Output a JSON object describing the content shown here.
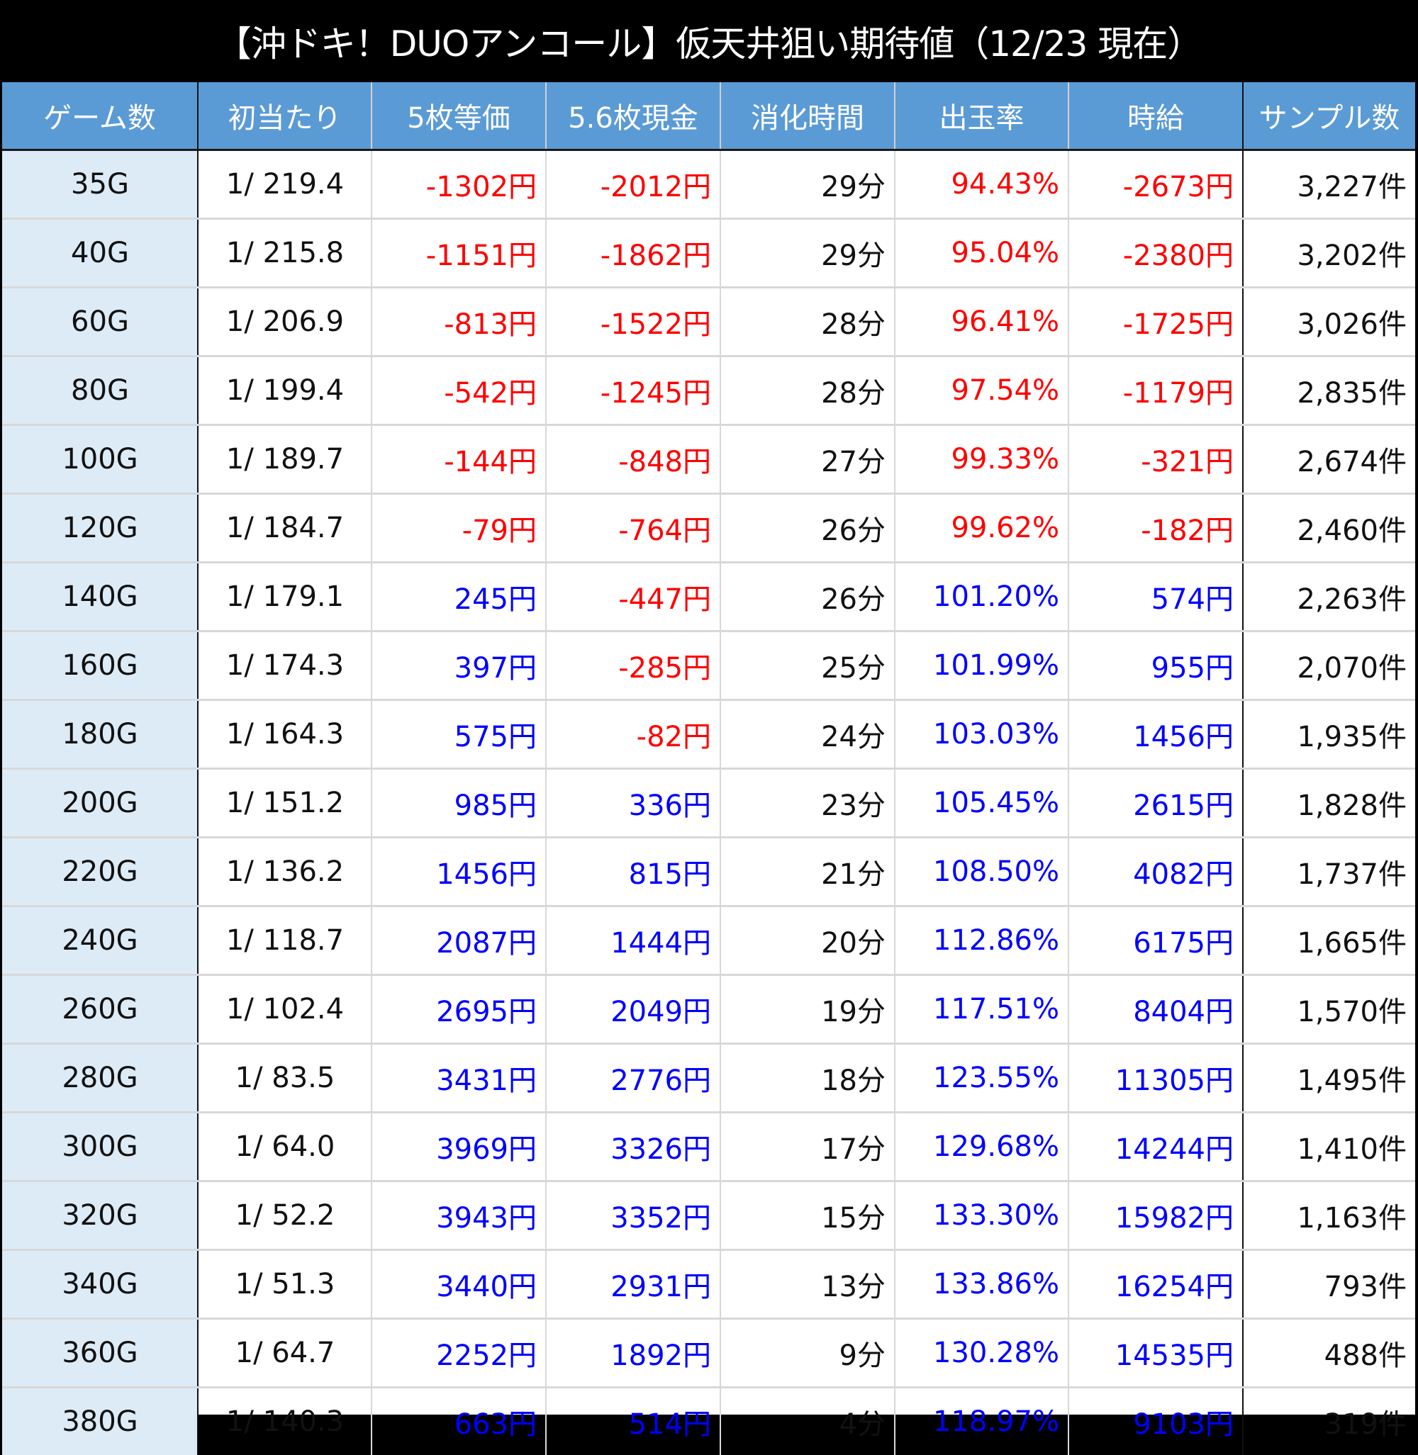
{
  "title": "【沖ドキ！DUOアンコール】仮天井狙い期待値（12/23 現在）",
  "colors": {
    "header_bg": "#5b9bd5",
    "first_col_bg": "#ddebf7",
    "negative": "#ff0000",
    "positive": "#0000ff"
  },
  "headers": [
    "ゲーム数",
    "初当たり",
    "5枚等価",
    "5.6枚現金",
    "消化時間",
    "出玉率",
    "時給",
    "サンプル数"
  ],
  "rows": [
    [
      "35G",
      "1/ 219.4",
      "-1302円",
      "-2012円",
      "29分",
      "94.43%",
      "-2673円",
      "3,227件"
    ],
    [
      "40G",
      "1/ 215.8",
      "-1151円",
      "-1862円",
      "29分",
      "95.04%",
      "-2380円",
      "3,202件"
    ],
    [
      "60G",
      "1/ 206.9",
      "-813円",
      "-1522円",
      "28分",
      "96.41%",
      "-1725円",
      "3,026件"
    ],
    [
      "80G",
      "1/ 199.4",
      "-542円",
      "-1245円",
      "28分",
      "97.54%",
      "-1179円",
      "2,835件"
    ],
    [
      "100G",
      "1/ 189.7",
      "-144円",
      "-848円",
      "27分",
      "99.33%",
      "-321円",
      "2,674件"
    ],
    [
      "120G",
      "1/ 184.7",
      "-79円",
      "-764円",
      "26分",
      "99.62%",
      "-182円",
      "2,460件"
    ],
    [
      "140G",
      "1/ 179.1",
      "245円",
      "-447円",
      "26分",
      "101.20%",
      "574円",
      "2,263件"
    ],
    [
      "160G",
      "1/ 174.3",
      "397円",
      "-285円",
      "25分",
      "101.99%",
      "955円",
      "2,070件"
    ],
    [
      "180G",
      "1/ 164.3",
      "575円",
      "-82円",
      "24分",
      "103.03%",
      "1456円",
      "1,935件"
    ],
    [
      "200G",
      "1/ 151.2",
      "985円",
      "336円",
      "23分",
      "105.45%",
      "2615円",
      "1,828件"
    ],
    [
      "220G",
      "1/ 136.2",
      "1456円",
      "815円",
      "21分",
      "108.50%",
      "4082円",
      "1,737件"
    ],
    [
      "240G",
      "1/ 118.7",
      "2087円",
      "1444円",
      "20分",
      "112.86%",
      "6175円",
      "1,665件"
    ],
    [
      "260G",
      "1/ 102.4",
      "2695円",
      "2049円",
      "19分",
      "117.51%",
      "8404円",
      "1,570件"
    ],
    [
      "280G",
      "1/ 83.5",
      "3431円",
      "2776円",
      "18分",
      "123.55%",
      "11305円",
      "1,495件"
    ],
    [
      "300G",
      "1/ 64.0",
      "3969円",
      "3326円",
      "17分",
      "129.68%",
      "14244円",
      "1,410件"
    ],
    [
      "320G",
      "1/ 52.2",
      "3943円",
      "3352円",
      "15分",
      "133.30%",
      "15982円",
      "1,163件"
    ],
    [
      "340G",
      "1/ 51.3",
      "3440円",
      "2931円",
      "13分",
      "133.86%",
      "16254円",
      "793件"
    ],
    [
      "360G",
      "1/ 64.7",
      "2252円",
      "1892円",
      "9分",
      "130.28%",
      "14535円",
      "488件"
    ],
    [
      "380G",
      "1/ 140.3",
      "663円",
      "514円",
      "4分",
      "118.97%",
      "9103円",
      "319件"
    ]
  ]
}
